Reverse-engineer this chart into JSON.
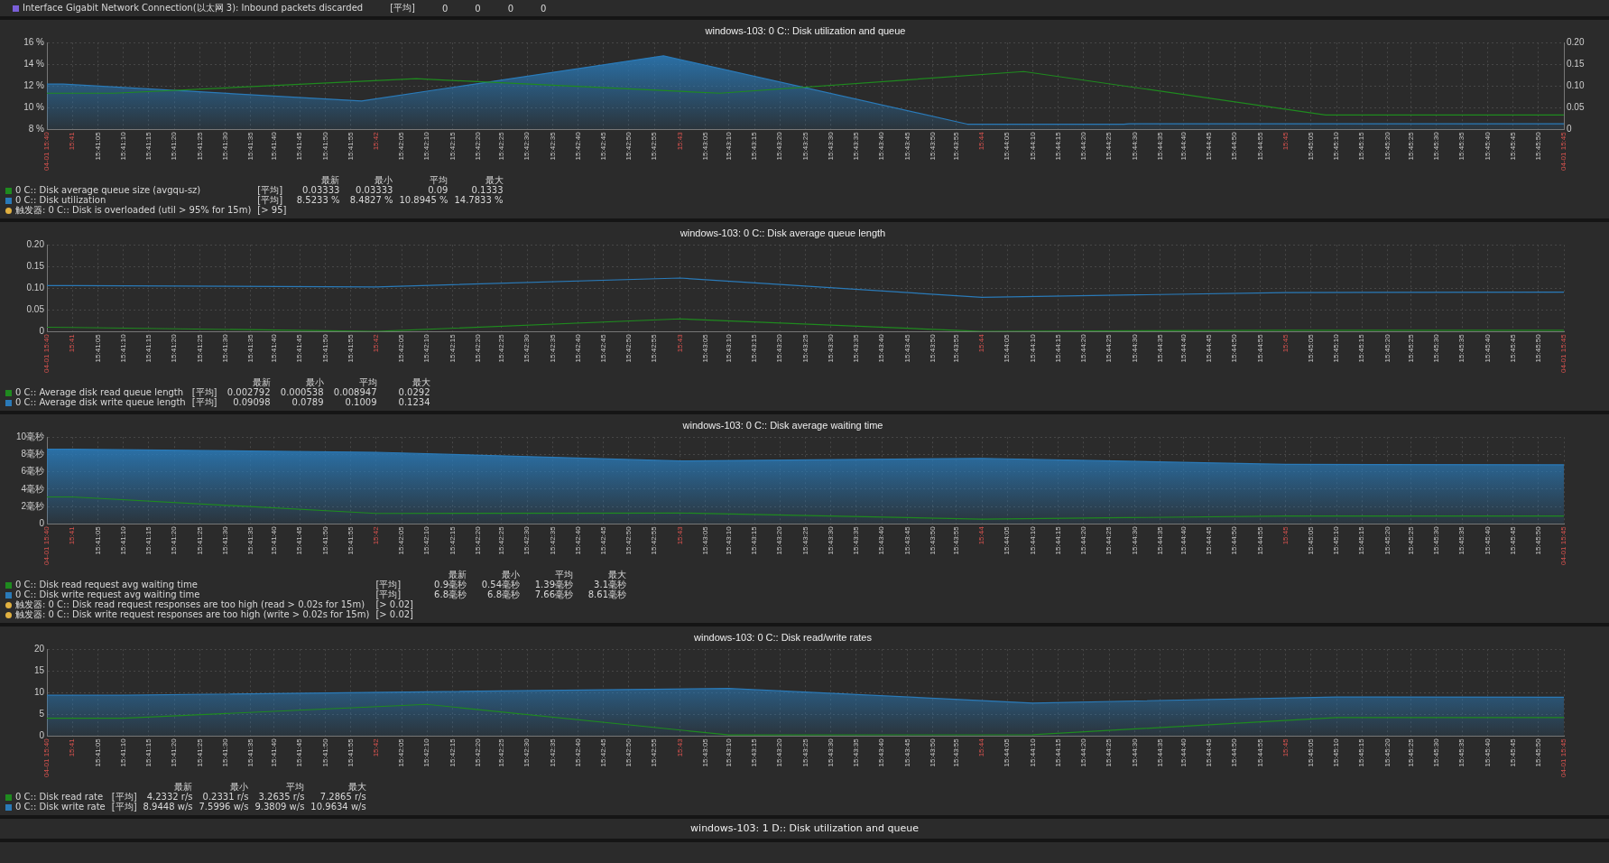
{
  "chart_data": [
    {
      "type": "other",
      "annotations": [
        "Interface Gigabit Network Connection(以太网 3): Inbound packets discarded",
        "[平均]",
        "0",
        "0",
        "0",
        "0"
      ]
    },
    {
      "type": "line",
      "title": "windows-103: 0 C:: Disk utilization and queue",
      "legend": "bottom left",
      "grid": true,
      "xlim": [
        15.6819,
        15.7653
      ],
      "xticks": [
        {
          "value": 15.6819,
          "label": "04-01 15:40"
        },
        {
          "value": 15.6833,
          "label": "15:41"
        },
        {
          "value": 15.6847,
          "label": "15:41:05"
        },
        {
          "value": 15.6861,
          "label": "15:41:10"
        },
        {
          "value": 15.6875,
          "label": "15:41:15"
        },
        {
          "value": 15.6889,
          "label": "15:41:20"
        },
        {
          "value": 15.6903,
          "label": "15:41:25"
        },
        {
          "value": 15.6917,
          "label": "15:41:30"
        },
        {
          "value": 15.6931,
          "label": "15:41:35"
        },
        {
          "value": 15.6944,
          "label": "15:41:40"
        },
        {
          "value": 15.6958,
          "label": "15:41:45"
        },
        {
          "value": 15.6972,
          "label": "15:41:50"
        },
        {
          "value": 15.6986,
          "label": "15:41:55"
        },
        {
          "value": 15.7,
          "label": "15:42"
        },
        {
          "value": 15.7014,
          "label": "15:42:05"
        },
        {
          "value": 15.7028,
          "label": "15:42:10"
        },
        {
          "value": 15.7042,
          "label": "15:42:15"
        },
        {
          "value": 15.7056,
          "label": "15:42:20"
        },
        {
          "value": 15.7069,
          "label": "15:42:25"
        },
        {
          "value": 15.7083,
          "label": "15:42:30"
        },
        {
          "value": 15.7097,
          "label": "15:42:35"
        },
        {
          "value": 15.7111,
          "label": "15:42:40"
        },
        {
          "value": 15.7125,
          "label": "15:42:45"
        },
        {
          "value": 15.7139,
          "label": "15:42:50"
        },
        {
          "value": 15.7153,
          "label": "15:42:55"
        },
        {
          "value": 15.7167,
          "label": "15:43"
        },
        {
          "value": 15.7181,
          "label": "15:43:05"
        },
        {
          "value": 15.7194,
          "label": "15:43:10"
        },
        {
          "value": 15.7208,
          "label": "15:43:15"
        },
        {
          "value": 15.7222,
          "label": "15:43:20"
        },
        {
          "value": 15.7236,
          "label": "15:43:25"
        },
        {
          "value": 15.725,
          "label": "15:43:30"
        },
        {
          "value": 15.7264,
          "label": "15:43:35"
        },
        {
          "value": 15.7278,
          "label": "15:43:40"
        },
        {
          "value": 15.7292,
          "label": "15:43:45"
        },
        {
          "value": 15.7306,
          "label": "15:43:50"
        },
        {
          "value": 15.7319,
          "label": "15:43:55"
        },
        {
          "value": 15.7333,
          "label": "15:44"
        },
        {
          "value": 15.7347,
          "label": "15:44:05"
        },
        {
          "value": 15.7361,
          "label": "15:44:10"
        },
        {
          "value": 15.7375,
          "label": "15:44:15"
        },
        {
          "value": 15.7389,
          "label": "15:44:20"
        },
        {
          "value": 15.7403,
          "label": "15:44:25"
        },
        {
          "value": 15.7417,
          "label": "15:44:30"
        },
        {
          "value": 15.7431,
          "label": "15:44:35"
        },
        {
          "value": 15.7444,
          "label": "15:44:40"
        },
        {
          "value": 15.7458,
          "label": "15:44:45"
        },
        {
          "value": 15.7472,
          "label": "15:44:50"
        },
        {
          "value": 15.7486,
          "label": "15:44:55"
        },
        {
          "value": 15.75,
          "label": "15:45"
        },
        {
          "value": 15.7514,
          "label": "15:45:05"
        },
        {
          "value": 15.7528,
          "label": "15:45:10"
        },
        {
          "value": 15.7542,
          "label": "15:45:15"
        },
        {
          "value": 15.7556,
          "label": "15:45:20"
        },
        {
          "value": 15.7569,
          "label": "15:45:25"
        },
        {
          "value": 15.7583,
          "label": "15:45:30"
        },
        {
          "value": 15.7597,
          "label": "15:45:35"
        },
        {
          "value": 15.7611,
          "label": "15:45:40"
        },
        {
          "value": 15.7625,
          "label": "15:45:45"
        },
        {
          "value": 15.7639,
          "label": "15:45:50"
        },
        {
          "value": 15.7653,
          "label": "04-01 15:45"
        }
      ],
      "ylim": [
        8,
        16
      ],
      "yticks": [
        {
          "value": 8,
          "label": "8 %"
        },
        {
          "value": 10,
          "label": "10 %"
        },
        {
          "value": 12,
          "label": "12 %"
        },
        {
          "value": 14,
          "label": "14 %"
        },
        {
          "value": 16,
          "label": "16 %"
        }
      ],
      "y2lim": [
        0,
        0.2
      ],
      "y2ticks": [
        0,
        0.05,
        {
          "value": 0.1,
          "label": "0.10"
        },
        0.15,
        {
          "value": 0.2,
          "label": "0.20"
        }
      ],
      "series": [
        {
          "name": "0 C:: Disk average queue size (avgqu-sz)",
          "color": "#1f8a1f",
          "axis": "y2",
          "x": [
            15.6819,
            15.6856,
            15.7022,
            15.7189,
            15.7356,
            15.7522,
            15.7653
          ],
          "values": [
            0.0833,
            0.0833,
            0.1167,
            0.0833,
            0.1333,
            0.0333,
            0.0333
          ]
        },
        {
          "name": "0 C:: Disk utilization",
          "color": "#2a7ab8",
          "type": "area",
          "x": [
            15.6819,
            15.6828,
            15.6992,
            15.7158,
            15.7325,
            15.7411,
            15.7414,
            15.7653
          ],
          "values": [
            12.17,
            12.17,
            10.62,
            14.78,
            8.48,
            8.48,
            8.52,
            8.52
          ]
        }
      ],
      "annotations": [
        "最新",
        "最小",
        "平均",
        "最大",
        "[平均]",
        "0.03333",
        "0.03333",
        "0.09",
        "0.1333",
        "[平均]",
        "8.5233 %",
        "8.4827 %",
        "10.8945 %",
        "14.7833 %",
        "触发器: 0 C:: Disk is overloaded (util > 95% for 15m)",
        "[> 95]"
      ]
    },
    {
      "type": "line",
      "title": "windows-103: 0 C:: Disk average queue length",
      "legend": "bottom left",
      "grid": true,
      "xlim": [
        15.6819,
        15.7653
      ],
      "xticks": [
        {
          "value": 15.6819,
          "label": "04-01 15:40"
        },
        {
          "value": 15.6833,
          "label": "15:41"
        },
        {
          "value": 15.6847,
          "label": "15:41:05"
        },
        {
          "value": 15.6861,
          "label": "15:41:10"
        },
        {
          "value": 15.6875,
          "label": "15:41:15"
        },
        {
          "value": 15.6889,
          "label": "15:41:20"
        },
        {
          "value": 15.6903,
          "label": "15:41:25"
        },
        {
          "value": 15.6917,
          "label": "15:41:30"
        },
        {
          "value": 15.6931,
          "label": "15:41:35"
        },
        {
          "value": 15.6944,
          "label": "15:41:40"
        },
        {
          "value": 15.6958,
          "label": "15:41:45"
        },
        {
          "value": 15.6972,
          "label": "15:41:50"
        },
        {
          "value": 15.6986,
          "label": "15:41:55"
        },
        {
          "value": 15.7,
          "label": "15:42"
        },
        {
          "value": 15.7014,
          "label": "15:42:05"
        },
        {
          "value": 15.7028,
          "label": "15:42:10"
        },
        {
          "value": 15.7042,
          "label": "15:42:15"
        },
        {
          "value": 15.7056,
          "label": "15:42:20"
        },
        {
          "value": 15.7069,
          "label": "15:42:25"
        },
        {
          "value": 15.7083,
          "label": "15:42:30"
        },
        {
          "value": 15.7097,
          "label": "15:42:35"
        },
        {
          "value": 15.7111,
          "label": "15:42:40"
        },
        {
          "value": 15.7125,
          "label": "15:42:45"
        },
        {
          "value": 15.7139,
          "label": "15:42:50"
        },
        {
          "value": 15.7153,
          "label": "15:42:55"
        },
        {
          "value": 15.7167,
          "label": "15:43"
        },
        {
          "value": 15.7181,
          "label": "15:43:05"
        },
        {
          "value": 15.7194,
          "label": "15:43:10"
        },
        {
          "value": 15.7208,
          "label": "15:43:15"
        },
        {
          "value": 15.7222,
          "label": "15:43:20"
        },
        {
          "value": 15.7236,
          "label": "15:43:25"
        },
        {
          "value": 15.725,
          "label": "15:43:30"
        },
        {
          "value": 15.7264,
          "label": "15:43:35"
        },
        {
          "value": 15.7278,
          "label": "15:43:40"
        },
        {
          "value": 15.7292,
          "label": "15:43:45"
        },
        {
          "value": 15.7306,
          "label": "15:43:50"
        },
        {
          "value": 15.7319,
          "label": "15:43:55"
        },
        {
          "value": 15.7333,
          "label": "15:44"
        },
        {
          "value": 15.7347,
          "label": "15:44:05"
        },
        {
          "value": 15.7361,
          "label": "15:44:10"
        },
        {
          "value": 15.7375,
          "label": "15:44:15"
        },
        {
          "value": 15.7389,
          "label": "15:44:20"
        },
        {
          "value": 15.7403,
          "label": "15:44:25"
        },
        {
          "value": 15.7417,
          "label": "15:44:30"
        },
        {
          "value": 15.7431,
          "label": "15:44:35"
        },
        {
          "value": 15.7444,
          "label": "15:44:40"
        },
        {
          "value": 15.7458,
          "label": "15:44:45"
        },
        {
          "value": 15.7472,
          "label": "15:44:50"
        },
        {
          "value": 15.7486,
          "label": "15:44:55"
        },
        {
          "value": 15.75,
          "label": "15:45"
        },
        {
          "value": 15.7514,
          "label": "15:45:05"
        },
        {
          "value": 15.7528,
          "label": "15:45:10"
        },
        {
          "value": 15.7542,
          "label": "15:45:15"
        },
        {
          "value": 15.7556,
          "label": "15:45:20"
        },
        {
          "value": 15.7569,
          "label": "15:45:25"
        },
        {
          "value": 15.7583,
          "label": "15:45:30"
        },
        {
          "value": 15.7597,
          "label": "15:45:35"
        },
        {
          "value": 15.7611,
          "label": "15:45:40"
        },
        {
          "value": 15.7625,
          "label": "15:45:45"
        },
        {
          "value": 15.7639,
          "label": "15:45:50"
        },
        {
          "value": 15.7653,
          "label": "04-01 15:45"
        }
      ],
      "ylim": [
        0,
        0.2
      ],
      "yticks": [
        0,
        0.05,
        {
          "value": 0.1,
          "label": "0.10"
        },
        0.15,
        {
          "value": 0.2,
          "label": "0.20"
        }
      ],
      "x": [
        15.6819,
        15.6833,
        15.7,
        15.7167,
        15.7333,
        15.75,
        15.7653
      ],
      "series": [
        {
          "name": "0 C:: Average disk read queue length",
          "color": "#1f8a1f",
          "values": [
            0.01,
            0.0095,
            0.0005,
            0.0292,
            0.0005,
            0.003,
            0.0028
          ]
        },
        {
          "name": "0 C:: Average disk write queue length",
          "color": "#2a7ab8",
          "values": [
            0.106,
            0.106,
            0.103,
            0.1234,
            0.0789,
            0.09,
            0.091
          ]
        }
      ],
      "annotations": [
        "最新",
        "最小",
        "平均",
        "最大",
        "[平均]",
        "0.002792",
        "0.000538",
        "0.008947",
        "0.0292",
        "[平均]",
        "0.09098",
        "0.0789",
        "0.1009",
        "0.1234"
      ]
    },
    {
      "type": "line",
      "title": "windows-103: 0 C:: Disk average waiting time",
      "legend": "bottom left",
      "grid": true,
      "xlim": [
        15.6819,
        15.7653
      ],
      "xticks": [
        {
          "value": 15.6819,
          "label": "04-01 15:40"
        },
        {
          "value": 15.6833,
          "label": "15:41"
        },
        {
          "value": 15.6847,
          "label": "15:41:05"
        },
        {
          "value": 15.6861,
          "label": "15:41:10"
        },
        {
          "value": 15.6875,
          "label": "15:41:15"
        },
        {
          "value": 15.6889,
          "label": "15:41:20"
        },
        {
          "value": 15.6903,
          "label": "15:41:25"
        },
        {
          "value": 15.6917,
          "label": "15:41:30"
        },
        {
          "value": 15.6931,
          "label": "15:41:35"
        },
        {
          "value": 15.6944,
          "label": "15:41:40"
        },
        {
          "value": 15.6958,
          "label": "15:41:45"
        },
        {
          "value": 15.6972,
          "label": "15:41:50"
        },
        {
          "value": 15.6986,
          "label": "15:41:55"
        },
        {
          "value": 15.7,
          "label": "15:42"
        },
        {
          "value": 15.7014,
          "label": "15:42:05"
        },
        {
          "value": 15.7028,
          "label": "15:42:10"
        },
        {
          "value": 15.7042,
          "label": "15:42:15"
        },
        {
          "value": 15.7056,
          "label": "15:42:20"
        },
        {
          "value": 15.7069,
          "label": "15:42:25"
        },
        {
          "value": 15.7083,
          "label": "15:42:30"
        },
        {
          "value": 15.7097,
          "label": "15:42:35"
        },
        {
          "value": 15.7111,
          "label": "15:42:40"
        },
        {
          "value": 15.7125,
          "label": "15:42:45"
        },
        {
          "value": 15.7139,
          "label": "15:42:50"
        },
        {
          "value": 15.7153,
          "label": "15:42:55"
        },
        {
          "value": 15.7167,
          "label": "15:43"
        },
        {
          "value": 15.7181,
          "label": "15:43:05"
        },
        {
          "value": 15.7194,
          "label": "15:43:10"
        },
        {
          "value": 15.7208,
          "label": "15:43:15"
        },
        {
          "value": 15.7222,
          "label": "15:43:20"
        },
        {
          "value": 15.7236,
          "label": "15:43:25"
        },
        {
          "value": 15.725,
          "label": "15:43:30"
        },
        {
          "value": 15.7264,
          "label": "15:43:35"
        },
        {
          "value": 15.7278,
          "label": "15:43:40"
        },
        {
          "value": 15.7292,
          "label": "15:43:45"
        },
        {
          "value": 15.7306,
          "label": "15:43:50"
        },
        {
          "value": 15.7319,
          "label": "15:43:55"
        },
        {
          "value": 15.7333,
          "label": "15:44"
        },
        {
          "value": 15.7347,
          "label": "15:44:05"
        },
        {
          "value": 15.7361,
          "label": "15:44:10"
        },
        {
          "value": 15.7375,
          "label": "15:44:15"
        },
        {
          "value": 15.7389,
          "label": "15:44:20"
        },
        {
          "value": 15.7403,
          "label": "15:44:25"
        },
        {
          "value": 15.7417,
          "label": "15:44:30"
        },
        {
          "value": 15.7431,
          "label": "15:44:35"
        },
        {
          "value": 15.7444,
          "label": "15:44:40"
        },
        {
          "value": 15.7458,
          "label": "15:44:45"
        },
        {
          "value": 15.7472,
          "label": "15:44:50"
        },
        {
          "value": 15.7486,
          "label": "15:44:55"
        },
        {
          "value": 15.75,
          "label": "15:45"
        },
        {
          "value": 15.7514,
          "label": "15:45:05"
        },
        {
          "value": 15.7528,
          "label": "15:45:10"
        },
        {
          "value": 15.7542,
          "label": "15:45:15"
        },
        {
          "value": 15.7556,
          "label": "15:45:20"
        },
        {
          "value": 15.7569,
          "label": "15:45:25"
        },
        {
          "value": 15.7583,
          "label": "15:45:30"
        },
        {
          "value": 15.7597,
          "label": "15:45:35"
        },
        {
          "value": 15.7611,
          "label": "15:45:40"
        },
        {
          "value": 15.7625,
          "label": "15:45:45"
        },
        {
          "value": 15.7639,
          "label": "15:45:50"
        },
        {
          "value": 15.7653,
          "label": "04-01 15:45"
        }
      ],
      "ylim": [
        0,
        10
      ],
      "yticks": [
        0,
        {
          "value": 2,
          "label": "2毫秒"
        },
        {
          "value": 4,
          "label": "4毫秒"
        },
        {
          "value": 6,
          "label": "6毫秒"
        },
        {
          "value": 8,
          "label": "8毫秒"
        },
        {
          "value": 10,
          "label": "10毫秒"
        }
      ],
      "x": [
        15.6819,
        15.6833,
        15.7,
        15.7167,
        15.7333,
        15.75,
        15.7653
      ],
      "series": [
        {
          "name": "0 C:: Disk read request avg waiting time",
          "color": "#1f8a1f",
          "values": [
            3.1,
            3.1,
            1.2,
            1.25,
            0.54,
            0.9,
            0.9
          ]
        },
        {
          "name": "0 C:: Disk write request avg waiting time",
          "color": "#2a7ab8",
          "type": "area",
          "values": [
            8.61,
            8.6,
            8.25,
            7.25,
            7.55,
            6.85,
            6.8
          ]
        }
      ],
      "annotations": [
        "最新",
        "最小",
        "平均",
        "最大",
        "[平均]",
        "0.9毫秒",
        "0.54毫秒",
        "1.39毫秒",
        "3.1毫秒",
        "[平均]",
        "6.8毫秒",
        "6.8毫秒",
        "7.66毫秒",
        "8.61毫秒",
        "触发器: 0 C:: Disk read request responses are too high (read > 0.02s for 15m)",
        "[> 0.02]",
        "触发器: 0 C:: Disk write request responses are too high (write > 0.02s for 15m)",
        "[> 0.02]"
      ]
    },
    {
      "type": "line",
      "title": "windows-103: 0 C:: Disk read/write rates",
      "legend": "bottom left",
      "grid": true,
      "xlim": [
        15.6819,
        15.7653
      ],
      "xticks": [
        {
          "value": 15.6819,
          "label": "04-01 15:40"
        },
        {
          "value": 15.6833,
          "label": "15:41"
        },
        {
          "value": 15.6847,
          "label": "15:41:05"
        },
        {
          "value": 15.6861,
          "label": "15:41:10"
        },
        {
          "value": 15.6875,
          "label": "15:41:15"
        },
        {
          "value": 15.6889,
          "label": "15:41:20"
        },
        {
          "value": 15.6903,
          "label": "15:41:25"
        },
        {
          "value": 15.6917,
          "label": "15:41:30"
        },
        {
          "value": 15.6931,
          "label": "15:41:35"
        },
        {
          "value": 15.6944,
          "label": "15:41:40"
        },
        {
          "value": 15.6958,
          "label": "15:41:45"
        },
        {
          "value": 15.6972,
          "label": "15:41:50"
        },
        {
          "value": 15.6986,
          "label": "15:41:55"
        },
        {
          "value": 15.7,
          "label": "15:42"
        },
        {
          "value": 15.7014,
          "label": "15:42:05"
        },
        {
          "value": 15.7028,
          "label": "15:42:10"
        },
        {
          "value": 15.7042,
          "label": "15:42:15"
        },
        {
          "value": 15.7056,
          "label": "15:42:20"
        },
        {
          "value": 15.7069,
          "label": "15:42:25"
        },
        {
          "value": 15.7083,
          "label": "15:42:30"
        },
        {
          "value": 15.7097,
          "label": "15:42:35"
        },
        {
          "value": 15.7111,
          "label": "15:42:40"
        },
        {
          "value": 15.7125,
          "label": "15:42:45"
        },
        {
          "value": 15.7139,
          "label": "15:42:50"
        },
        {
          "value": 15.7153,
          "label": "15:42:55"
        },
        {
          "value": 15.7167,
          "label": "15:43"
        },
        {
          "value": 15.7181,
          "label": "15:43:05"
        },
        {
          "value": 15.7194,
          "label": "15:43:10"
        },
        {
          "value": 15.7208,
          "label": "15:43:15"
        },
        {
          "value": 15.7222,
          "label": "15:43:20"
        },
        {
          "value": 15.7236,
          "label": "15:43:25"
        },
        {
          "value": 15.725,
          "label": "15:43:30"
        },
        {
          "value": 15.7264,
          "label": "15:43:35"
        },
        {
          "value": 15.7278,
          "label": "15:43:40"
        },
        {
          "value": 15.7292,
          "label": "15:43:45"
        },
        {
          "value": 15.7306,
          "label": "15:43:50"
        },
        {
          "value": 15.7319,
          "label": "15:43:55"
        },
        {
          "value": 15.7333,
          "label": "15:44"
        },
        {
          "value": 15.7347,
          "label": "15:44:05"
        },
        {
          "value": 15.7361,
          "label": "15:44:10"
        },
        {
          "value": 15.7375,
          "label": "15:44:15"
        },
        {
          "value": 15.7389,
          "label": "15:44:20"
        },
        {
          "value": 15.7403,
          "label": "15:44:25"
        },
        {
          "value": 15.7417,
          "label": "15:44:30"
        },
        {
          "value": 15.7431,
          "label": "15:44:35"
        },
        {
          "value": 15.7444,
          "label": "15:44:40"
        },
        {
          "value": 15.7458,
          "label": "15:44:45"
        },
        {
          "value": 15.7472,
          "label": "15:44:50"
        },
        {
          "value": 15.7486,
          "label": "15:44:55"
        },
        {
          "value": 15.75,
          "label": "15:45"
        },
        {
          "value": 15.7514,
          "label": "15:45:05"
        },
        {
          "value": 15.7528,
          "label": "15:45:10"
        },
        {
          "value": 15.7542,
          "label": "15:45:15"
        },
        {
          "value": 15.7556,
          "label": "15:45:20"
        },
        {
          "value": 15.7569,
          "label": "15:45:25"
        },
        {
          "value": 15.7583,
          "label": "15:45:30"
        },
        {
          "value": 15.7597,
          "label": "15:45:35"
        },
        {
          "value": 15.7611,
          "label": "15:45:40"
        },
        {
          "value": 15.7625,
          "label": "15:45:45"
        },
        {
          "value": 15.7639,
          "label": "15:45:50"
        },
        {
          "value": 15.7653,
          "label": "04-01 15:45"
        }
      ],
      "ylim": [
        0,
        20
      ],
      "yticks": [
        0,
        5,
        10,
        15,
        20
      ],
      "x": [
        15.6819,
        15.6861,
        15.7028,
        15.7194,
        15.7361,
        15.7528,
        15.7653
      ],
      "series": [
        {
          "name": "0 C:: Disk read rate",
          "color": "#1f8a1f",
          "values": [
            4.1,
            4.1,
            7.29,
            0.23,
            0.3,
            4.23,
            4.23
          ]
        },
        {
          "name": "0 C:: Disk write rate",
          "color": "#2a7ab8",
          "type": "area",
          "values": [
            9.4,
            9.4,
            10.2,
            10.96,
            7.6,
            9.0,
            8.94
          ]
        }
      ],
      "annotations": [
        "最新",
        "最小",
        "平均",
        "最大",
        "[平均]",
        "4.2332 r/s",
        "0.2331 r/s",
        "3.2635 r/s",
        "7.2865 r/s",
        "[平均]",
        "8.9448 w/s",
        "7.5996 w/s",
        "9.3809 w/s",
        "10.9634 w/s"
      ]
    },
    {
      "type": "other",
      "title": "windows-103: 1 D:: Disk utilization and queue"
    }
  ]
}
